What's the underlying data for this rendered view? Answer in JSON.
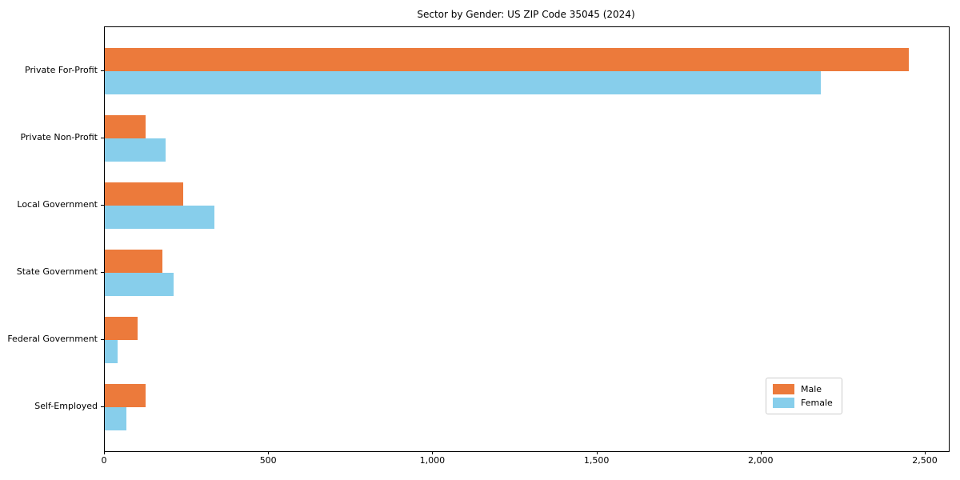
{
  "chart_data": {
    "type": "bar",
    "orientation": "horizontal",
    "title": "Sector by Gender: US ZIP Code 35045 (2024)",
    "categories": [
      "Private For-Profit",
      "Private Non-Profit",
      "Local Government",
      "State Government",
      "Federal Government",
      "Self-Employed"
    ],
    "series": [
      {
        "name": "Male",
        "color": "#EC7A3B",
        "values": [
          2450,
          125,
          240,
          175,
          100,
          125
        ]
      },
      {
        "name": "Female",
        "color": "#87CEEB",
        "values": [
          2180,
          185,
          335,
          210,
          40,
          65
        ]
      }
    ],
    "xlabel": "",
    "ylabel": "",
    "xlim": [
      0,
      2570
    ],
    "x_ticks": [
      0,
      500,
      1000,
      1500,
      2000,
      2500
    ],
    "x_tick_labels": [
      "0",
      "500",
      "1,000",
      "1,500",
      "2,000",
      "2,500"
    ],
    "grid": false,
    "legend": {
      "position": "lower right",
      "entries": [
        "Male",
        "Female"
      ]
    }
  }
}
